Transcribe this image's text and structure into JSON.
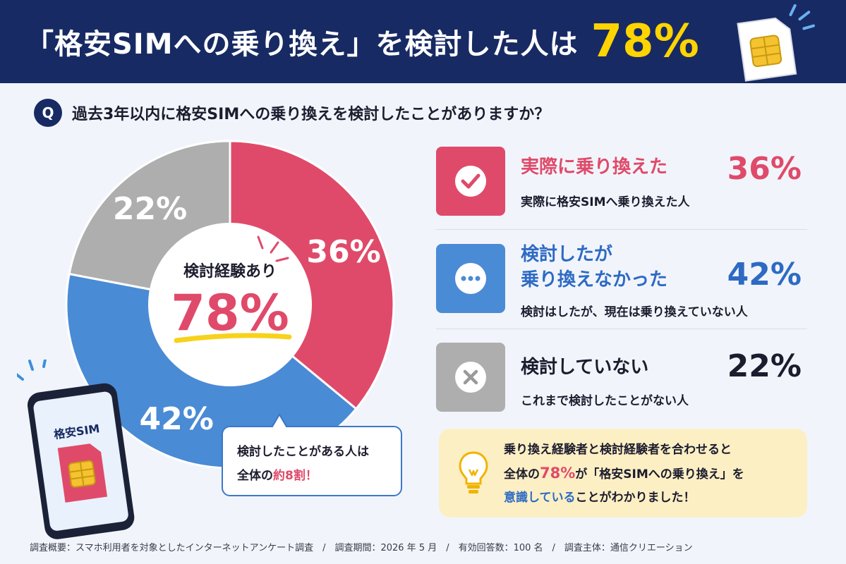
{
  "header": {
    "title": "「格安SIMへの乗り換え」を検討した人は",
    "highlight": "78%"
  },
  "question": {
    "badge": "Q",
    "text": "過去3年以内に格安SIMへの乗り換えを検討したことがありますか？"
  },
  "colors": {
    "navy": "#172a63",
    "yellow": "#ffd400",
    "pink": "#e04a6a",
    "blue": "#4a8bd6",
    "gray": "#aeaeae",
    "note_bg": "#fcefc4"
  },
  "chart_data": {
    "type": "pie",
    "style": "donut",
    "slices": [
      {
        "category": "実際に乗り換えた",
        "value": 36,
        "label": "36%",
        "color": "#e04a6a"
      },
      {
        "category": "検討したが乗り換えなかった",
        "value": 42,
        "label": "42%",
        "color": "#4a8bd6"
      },
      {
        "category": "検討していない",
        "value": 22,
        "label": "22%",
        "color": "#aeaeae"
      }
    ],
    "center_label": "検討経験あり",
    "center_value": "78%"
  },
  "categories": [
    {
      "title_lines": [
        "実際に乗り換えた"
      ],
      "pct": "36%",
      "sub": "実際に格安SIMへ乗り換えた人",
      "icon": "check-icon",
      "color": "#e04a6a"
    },
    {
      "title_lines": [
        "検討したが",
        "乗り換えなかった"
      ],
      "pct": "42%",
      "sub": "検討はしたが、現在は乗り換えていない人",
      "icon": "ellipsis-icon",
      "color": "#2e6ac4"
    },
    {
      "title_lines": [
        "検討していない"
      ],
      "pct": "22%",
      "sub": "これまで検討したことがない人",
      "icon": "cross-icon",
      "color": "#1c1c2e"
    }
  ],
  "callout": {
    "line1": "検討したことがある人は",
    "line2_prefix": "全体の",
    "line2_highlight": "約8割！"
  },
  "note": {
    "line1": "乗り換え経験者と検討経験者を合わせると",
    "line2_a": "全体の",
    "line2_b": "78%",
    "line2_c": "が「格安SIMへの乗り換え」を",
    "line3_a": "意識している",
    "line3_b": "ことがわかりました！",
    "icon": "lightbulb-icon"
  },
  "phone": {
    "label": "格安SIM",
    "icon": "smartphone-icon"
  },
  "footer": "調査概要：スマホ利用者を対象としたインターネットアンケート調査　/　調査期間：2026 年 5 月　/　有効回答数：100 名　/　調査主体：通信クリエーション"
}
